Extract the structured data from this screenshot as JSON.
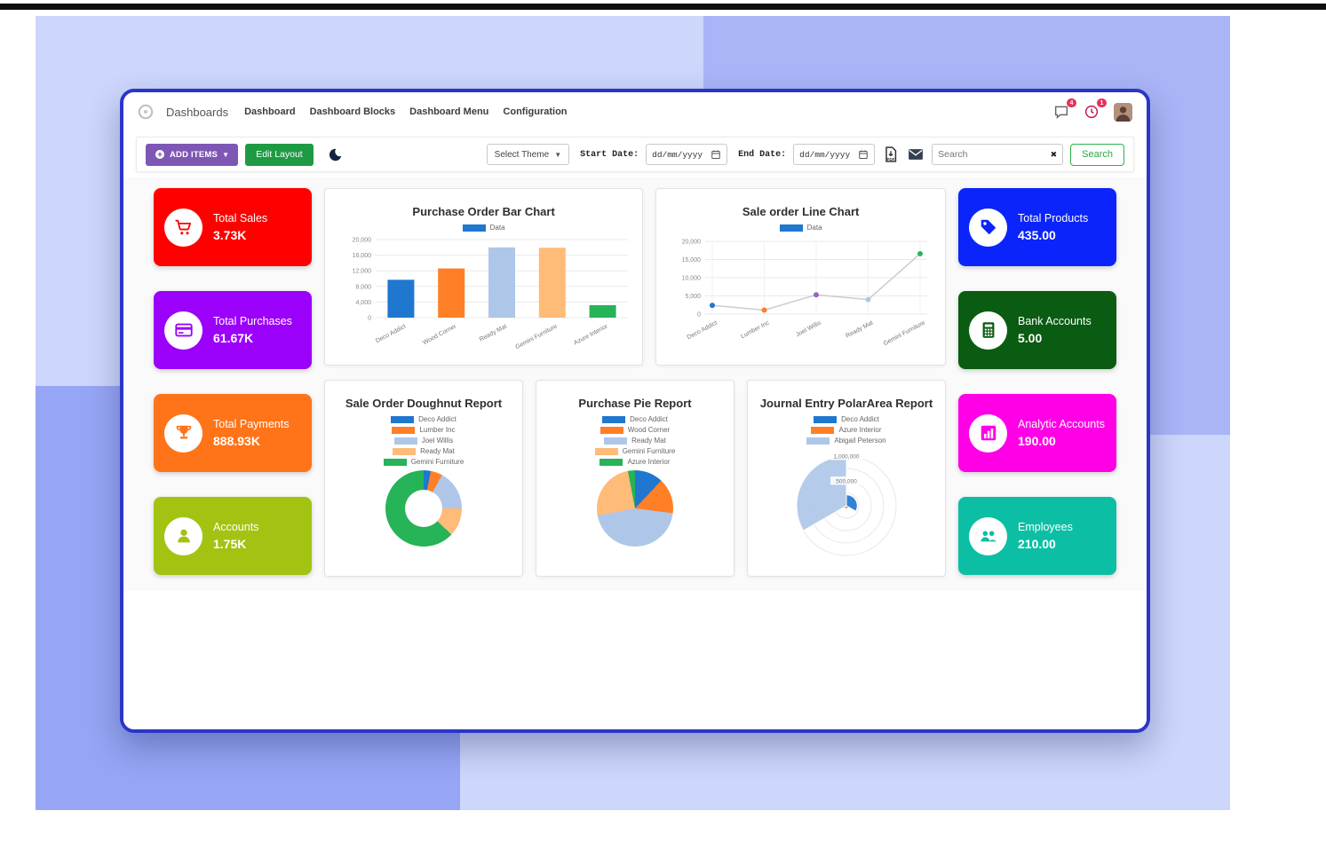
{
  "navbar": {
    "brand": "Dashboards",
    "menu": [
      {
        "label": "Dashboard"
      },
      {
        "label": "Dashboard Blocks"
      },
      {
        "label": "Dashboard Menu"
      },
      {
        "label": "Configuration"
      }
    ],
    "messages_badge": "4",
    "activities_badge": "1"
  },
  "toolbar": {
    "add_items_label": "ADD ITEMS",
    "edit_layout_label": "Edit Layout",
    "select_theme_label": "Select Theme",
    "start_date_label": "Start Date:",
    "end_date_label": "End Date:",
    "date_placeholder": "dd/mm/yyyy",
    "search_placeholder": "Search",
    "search_button_label": "Search"
  },
  "kpi_left": [
    {
      "label": "Total Sales",
      "value": "3.73K",
      "color": "#fe0000",
      "icon": "cart-icon"
    },
    {
      "label": "Total Purchases",
      "value": "61.67K",
      "color": "#9b00fb",
      "icon": "credit-card-icon"
    },
    {
      "label": "Total Payments",
      "value": "888.93K",
      "color": "#ff7418",
      "icon": "trophy-icon"
    },
    {
      "label": "Accounts",
      "value": "1.75K",
      "color": "#a3c312",
      "icon": "person-icon"
    }
  ],
  "kpi_right": [
    {
      "label": "Total Products",
      "value": "435.00",
      "color": "#0b24fb",
      "icon": "tag-icon"
    },
    {
      "label": "Bank Accounts",
      "value": "5.00",
      "color": "#0a5c12",
      "icon": "calculator-icon"
    },
    {
      "label": "Analytic Accounts",
      "value": "190.00",
      "color": "#ff00e6",
      "icon": "bar-chart-icon"
    },
    {
      "label": "Employees",
      "value": "210.00",
      "color": "#0cbfa4",
      "icon": "people-icon"
    }
  ],
  "chart_data": [
    {
      "id": "purchase-bar",
      "type": "bar",
      "title": "Purchase Order Bar Chart",
      "legend": [
        {
          "label": "Data",
          "color": "#1f77d0"
        }
      ],
      "categories": [
        "Deco Addict",
        "Wood Corner",
        "Ready Mat",
        "Gemini Furniture",
        "Azure Interior"
      ],
      "values": [
        9700,
        12600,
        18000,
        17900,
        3200
      ],
      "bar_colors": [
        "#1f77d0",
        "#ff7f27",
        "#aec7e8",
        "#ffbb78",
        "#27b357"
      ],
      "yticks": [
        0,
        4000,
        8000,
        12000,
        16000,
        20000
      ],
      "ylim": [
        0,
        20000
      ],
      "grid": true,
      "legend_position": "top"
    },
    {
      "id": "sale-line",
      "type": "line",
      "title": "Sale order Line Chart",
      "legend": [
        {
          "label": "Data",
          "color": "#1f77d0"
        }
      ],
      "categories": [
        "Deco Addict",
        "Lumber Inc",
        "Joel Willis",
        "Ready Mat",
        "Gemini Furniture"
      ],
      "values": [
        2400,
        1100,
        5300,
        4000,
        16600
      ],
      "point_colors": [
        "#1f77d0",
        "#ff7f27",
        "#9467bd",
        "#aec7e8",
        "#27b357"
      ],
      "line_color": "#cccccc",
      "yticks": [
        0,
        5000,
        10000,
        15000,
        20000
      ],
      "ylim": [
        0,
        20000
      ],
      "grid": true,
      "legend_position": "top"
    },
    {
      "id": "sale-doughnut",
      "type": "doughnut",
      "title": "Sale Order Doughnut Report",
      "labels": [
        "Deco Addict",
        "Lumber Inc",
        "Joel Willis",
        "Ready Mat",
        "Gemini Furniture"
      ],
      "values": [
        3,
        5,
        17,
        12,
        63
      ],
      "colors": [
        "#1f77d0",
        "#ff7f27",
        "#aec7e8",
        "#ffbb78",
        "#27b357"
      ],
      "legend_position": "top"
    },
    {
      "id": "purchase-pie",
      "type": "pie",
      "title": "Purchase Pie Report",
      "labels": [
        "Deco Addict",
        "Wood Corner",
        "Ready Mat",
        "Gemini Furniture",
        "Azure Interior"
      ],
      "values": [
        12,
        15,
        45,
        25,
        3
      ],
      "colors": [
        "#1f77d0",
        "#ff7f27",
        "#aec7e8",
        "#ffbb78",
        "#27b357"
      ],
      "legend_position": "top"
    },
    {
      "id": "journal-polar",
      "type": "polarArea",
      "title": "Journal Entry PolarArea Report",
      "labels": [
        "Deco Addict",
        "Azure Interior",
        "Abigail Peterson"
      ],
      "values": [
        220000,
        60000,
        1000000
      ],
      "colors": [
        "#1f77d0",
        "#ff7f27",
        "#aec7e8"
      ],
      "rticks": [
        "500,000",
        "1,000,000"
      ],
      "rlim": [
        0,
        1000000
      ],
      "legend_position": "top"
    }
  ]
}
